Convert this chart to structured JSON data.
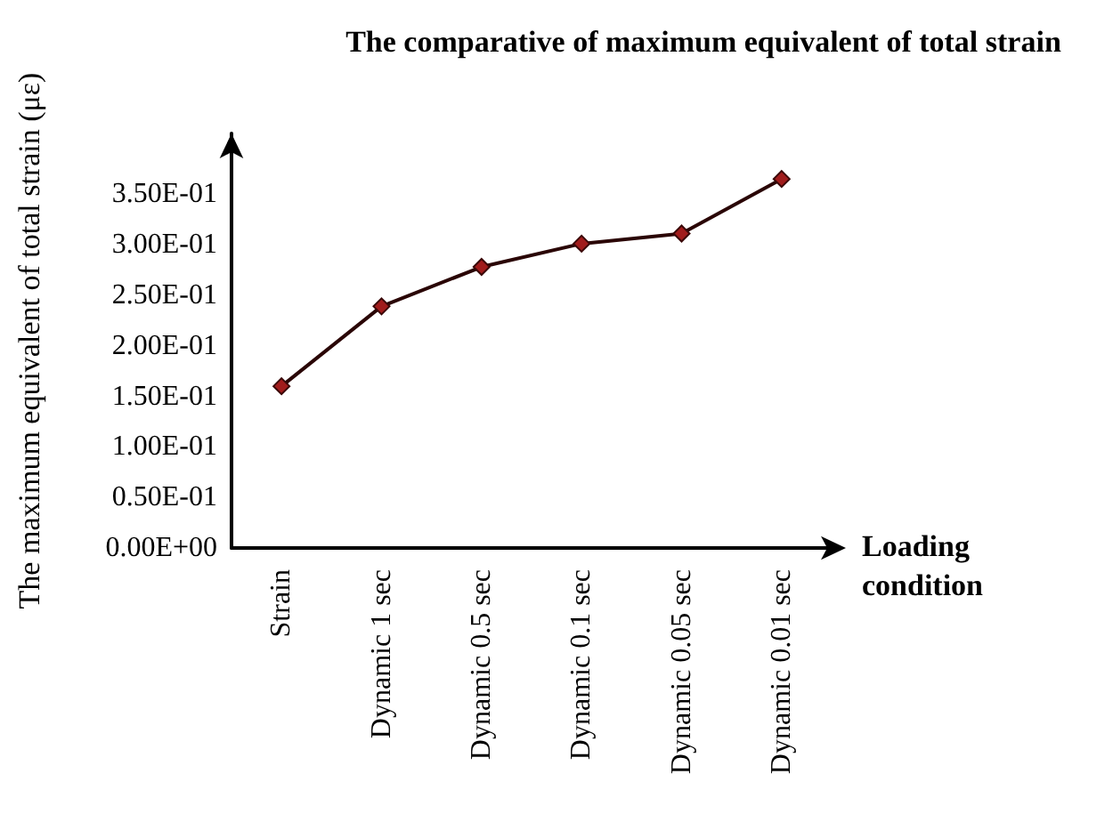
{
  "chart_data": {
    "type": "line",
    "title": "The comparative of maximum equivalent of total strain",
    "xlabel": "Loading condition",
    "ylabel": "The maximum equivalent of total strain (με)",
    "categories": [
      "Strain",
      "Dynamic 1 sec",
      "Dynamic 0.5 sec",
      "Dynamic 0.1 sec",
      "Dynamic 0.05 sec",
      "Dynamic 0.01 sec"
    ],
    "series": [
      {
        "color": "#a01c1c",
        "values": [
          0.16,
          0.239,
          0.278,
          0.301,
          0.311,
          0.365
        ]
      }
    ],
    "ylim": [
      0,
      0.41
    ],
    "yticks": [
      {
        "value": 0,
        "label": "0.00E+00"
      },
      {
        "value": 0.05,
        "label": "0.50E-01"
      },
      {
        "value": 0.1,
        "label": "1.00E-01"
      },
      {
        "value": 0.15,
        "label": "1.50E-01"
      },
      {
        "value": 0.2,
        "label": "2.00E-01"
      },
      {
        "value": 0.25,
        "label": "2.50E-01"
      },
      {
        "value": 0.3,
        "label": "3.00E-01"
      },
      {
        "value": 0.35,
        "label": "3.50E-01"
      }
    ],
    "marker": "diamond",
    "line_style": "solid"
  }
}
